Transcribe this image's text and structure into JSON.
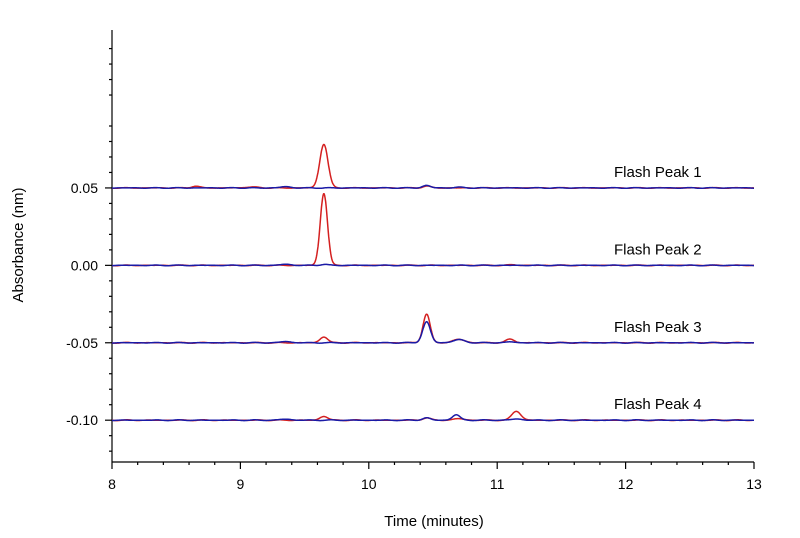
{
  "chart_data": {
    "type": "line",
    "title": "",
    "xlabel": "Time (minutes)",
    "ylabel": "Absorbance (nm)",
    "xlim": [
      8,
      13
    ],
    "ylim": [
      -0.127,
      0.152
    ],
    "x_ticks": [
      8,
      9,
      10,
      11,
      12,
      13
    ],
    "x_tick_labels": [
      "8",
      "9",
      "10",
      "11",
      "12",
      "13"
    ],
    "y_ticks": [
      0.05,
      0.0,
      -0.05,
      -0.1
    ],
    "y_tick_labels": [
      "0.05",
      "0.00",
      "-0.05",
      "-0.10"
    ],
    "grid": false,
    "legend": "none",
    "colors": {
      "red": "#d42020",
      "blue": "#1a1aa6"
    },
    "traces": [
      {
        "name": "Flash Peak 1",
        "baseline": 0.05,
        "series": [
          {
            "name": "red",
            "peaks": [
              [
                8.65,
                0.0012,
                0.03
              ],
              [
                9.08,
                0.0006,
                0.05
              ],
              [
                9.65,
                0.0283,
                0.032
              ],
              [
                10.45,
                0.0012,
                0.03
              ]
            ]
          },
          {
            "name": "blue",
            "peaks": [
              [
                9.35,
                0.0008,
                0.04
              ],
              [
                10.45,
                0.0016,
                0.03
              ],
              [
                10.7,
                0.0004,
                0.04
              ]
            ]
          }
        ]
      },
      {
        "name": "Flash Peak 2",
        "baseline": 0.0,
        "series": [
          {
            "name": "red",
            "peaks": [
              [
                9.65,
                0.0465,
                0.028
              ],
              [
                11.12,
                0.0004,
                0.03
              ]
            ]
          },
          {
            "name": "blue",
            "peaks": [
              [
                9.35,
                0.0007,
                0.04
              ],
              [
                9.65,
                0.0006,
                0.03
              ]
            ]
          }
        ]
      },
      {
        "name": "Flash Peak 3",
        "baseline": -0.05,
        "series": [
          {
            "name": "red",
            "peaks": [
              [
                9.65,
                0.0038,
                0.03
              ],
              [
                10.45,
                0.0185,
                0.028
              ],
              [
                10.7,
                0.0022,
                0.045
              ],
              [
                11.1,
                0.0022,
                0.035
              ]
            ]
          },
          {
            "name": "blue",
            "peaks": [
              [
                9.35,
                0.0008,
                0.04
              ],
              [
                10.45,
                0.0135,
                0.03
              ],
              [
                10.7,
                0.002,
                0.045
              ],
              [
                11.1,
                0.0006,
                0.035
              ]
            ]
          }
        ]
      },
      {
        "name": "Flash Peak 4",
        "baseline": -0.1,
        "series": [
          {
            "name": "red",
            "peaks": [
              [
                9.65,
                0.0025,
                0.03
              ],
              [
                10.45,
                0.0015,
                0.03
              ],
              [
                10.7,
                0.001,
                0.04
              ],
              [
                11.15,
                0.0058,
                0.035
              ]
            ]
          },
          {
            "name": "blue",
            "peaks": [
              [
                9.35,
                0.0007,
                0.04
              ],
              [
                10.45,
                0.0015,
                0.03
              ],
              [
                10.68,
                0.0035,
                0.03
              ],
              [
                11.15,
                0.0008,
                0.04
              ]
            ]
          }
        ]
      }
    ]
  }
}
